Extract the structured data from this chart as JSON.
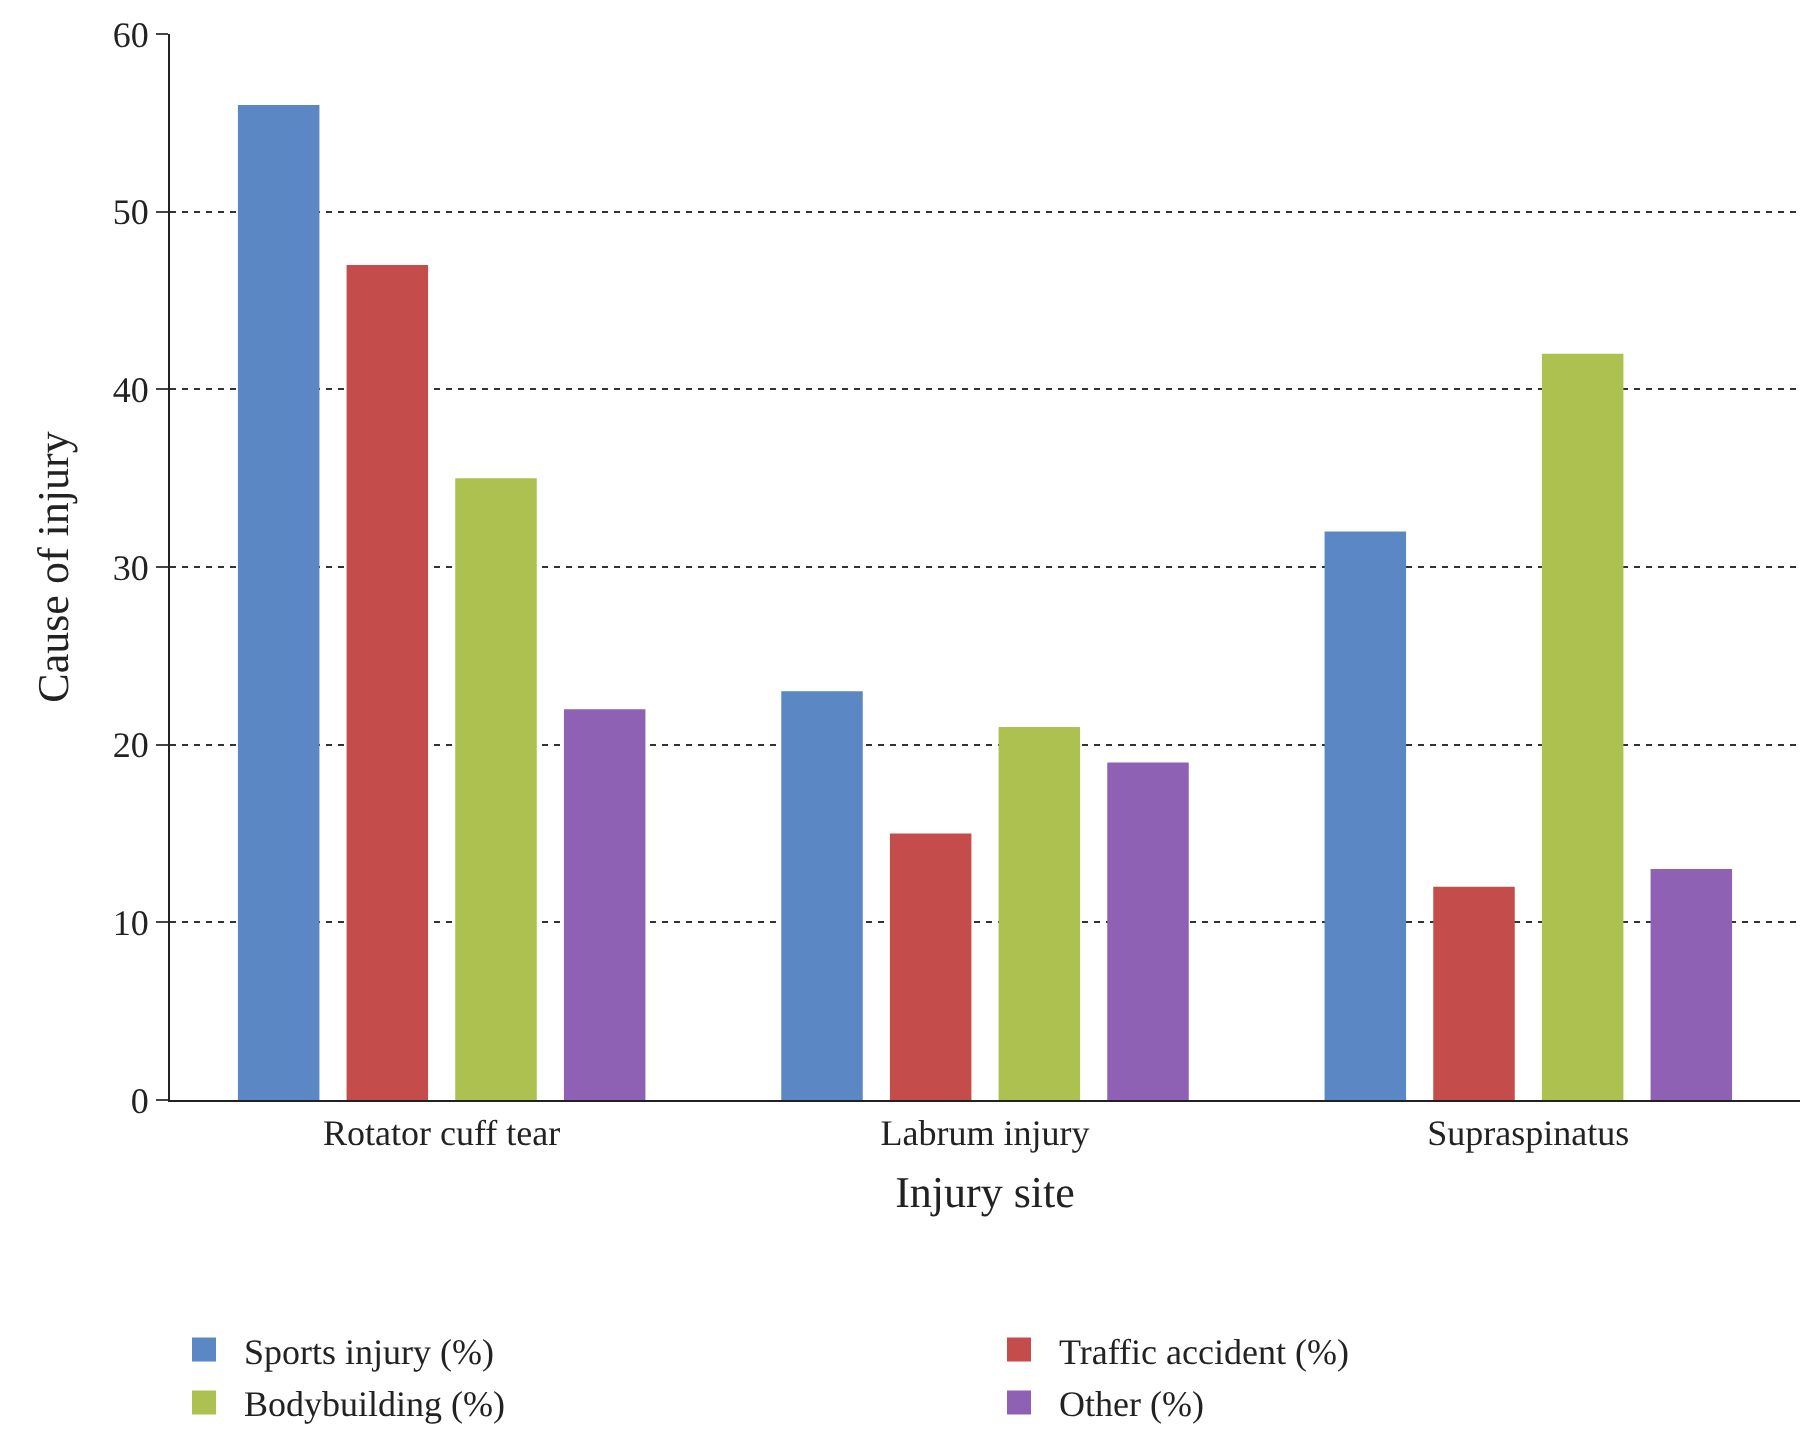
{
  "chart_data": {
    "type": "bar",
    "xlabel": "Injury site",
    "ylabel": "Cause of injury",
    "categories": [
      "Rotator cuff tear",
      "Labrum injury",
      "Supraspinatus"
    ],
    "series": [
      {
        "name": "Sports injury (%)",
        "color": "#5b87c5",
        "values": [
          56,
          23,
          32
        ]
      },
      {
        "name": "Traffic accident (%)",
        "color": "#c44d4b",
        "values": [
          47,
          15,
          12
        ]
      },
      {
        "name": "Bodybuilding (%)",
        "color": "#adc150",
        "values": [
          35,
          21,
          42
        ]
      },
      {
        "name": "Other (%)",
        "color": "#8f61b5",
        "values": [
          22,
          19,
          13
        ]
      }
    ],
    "ylim": [
      0,
      60
    ],
    "yticks": [
      0,
      10,
      20,
      30,
      40,
      50,
      60
    ],
    "grid": "y",
    "legend": "bottom"
  }
}
